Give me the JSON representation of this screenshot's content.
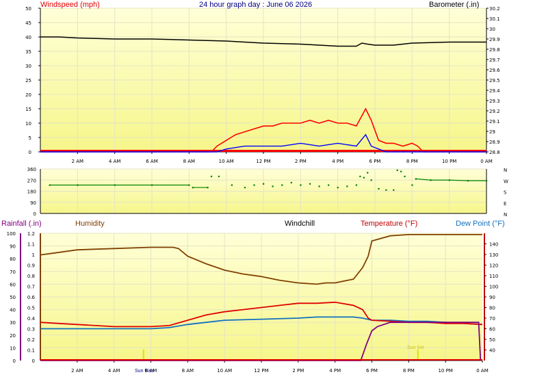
{
  "top": {
    "title": "24 hour graph day : June 06 2026",
    "left_label": "Windspeed (mph)",
    "right_label": "Barometer (.in)"
  },
  "bottom": {
    "rainfall_label": "Rainfall (.in)",
    "humidity_label": "Humidity",
    "windchill_label": "Windchill",
    "temperature_label": "Temperature (°F)",
    "dewpoint_label": "Dew Point (°F)",
    "sunrise_label": "Sun Rise",
    "sunset_label": "Sun Set"
  },
  "time_ticks": [
    "2 AM",
    "4 AM",
    "6 AM",
    "8 AM",
    "10 AM",
    "12 PM",
    "2 PM",
    "4 PM",
    "6 PM",
    "8 PM",
    "10 PM",
    "0 AM"
  ],
  "colors": {
    "plot_bg_top": "#ffffd8",
    "plot_bg_bottom": "#f6f68a",
    "grid": "#e4e4c4",
    "wind": "#ff0000",
    "gust": "#0000ff",
    "barometer": "#000000",
    "direction": "#008000",
    "humidity": "#804000",
    "temperature": "#e00000",
    "dewpoint": "#1070c0",
    "windchill": "#000000",
    "rain": "#800080",
    "sun": "#e0e000"
  },
  "chart_data": [
    {
      "type": "line",
      "name": "wind",
      "x_unit": "hours since 0 AM",
      "xlim": [
        0,
        24
      ],
      "ylim_left": [
        0,
        50
      ],
      "yticks_left": [
        0,
        5,
        10,
        15,
        20,
        25,
        30,
        35,
        40,
        45,
        50
      ],
      "ylim_right": [
        28.8,
        30.2
      ],
      "yticks_right": [
        "30.2",
        "30.1",
        "30",
        "29.9",
        "29.8",
        "29.7",
        "29.6",
        "29.5",
        "29.4",
        "29.3",
        "29.2",
        "29.1",
        "29",
        "28.9",
        "28.8"
      ],
      "series": [
        {
          "name": "Windspeed (mph)",
          "axis": "left",
          "x": [
            0,
            9.2,
            9.5,
            10,
            10.5,
            11,
            11.5,
            12,
            12.5,
            13,
            13.5,
            14,
            14.5,
            15,
            15.5,
            16,
            16.5,
            17,
            17.5,
            17.8,
            18.2,
            18.6,
            19,
            19.5,
            20,
            20.3,
            20.6,
            24
          ],
          "y": [
            0,
            0,
            2,
            4,
            6,
            7,
            8,
            9,
            9,
            10,
            10,
            10,
            11,
            10,
            11,
            10,
            10,
            9,
            15,
            11,
            4,
            3,
            3,
            2,
            3,
            2,
            0,
            0
          ]
        },
        {
          "name": "Gust",
          "axis": "left",
          "x": [
            0,
            9.5,
            10,
            11,
            12,
            13,
            14,
            15,
            16,
            17,
            17.5,
            17.8,
            18.2,
            18.6,
            24
          ],
          "y": [
            0,
            0,
            1,
            2,
            2,
            2,
            3,
            2,
            3,
            2,
            6,
            2,
            1,
            0,
            0
          ]
        },
        {
          "name": "Barometer (.in)",
          "axis": "right",
          "x": [
            0,
            1,
            2,
            4,
            6,
            8,
            10,
            12,
            14,
            16,
            17,
            17.3,
            17.6,
            18,
            19,
            20,
            22,
            24
          ],
          "y": [
            29.92,
            29.92,
            29.91,
            29.9,
            29.9,
            29.89,
            29.88,
            29.86,
            29.85,
            29.83,
            29.83,
            29.86,
            29.85,
            29.84,
            29.84,
            29.86,
            29.87,
            29.87
          ]
        }
      ]
    },
    {
      "type": "scatter",
      "name": "wind direction",
      "x_unit": "hours since 0 AM",
      "xlim": [
        0,
        24
      ],
      "ylim": [
        0,
        360
      ],
      "yticks": [
        0,
        90,
        180,
        270,
        360
      ],
      "compass": [
        "N",
        "W",
        "S",
        "E",
        "N"
      ],
      "points": [
        [
          0.5,
          230
        ],
        [
          2,
          230
        ],
        [
          4,
          230
        ],
        [
          6,
          230
        ],
        [
          8,
          230
        ],
        [
          8.2,
          210
        ],
        [
          9,
          210
        ],
        [
          9.2,
          300
        ],
        [
          9.6,
          300
        ],
        [
          10.3,
          230
        ],
        [
          11,
          210
        ],
        [
          11.5,
          230
        ],
        [
          12,
          240
        ],
        [
          12.5,
          220
        ],
        [
          13,
          230
        ],
        [
          13.5,
          250
        ],
        [
          14,
          230
        ],
        [
          14.5,
          240
        ],
        [
          15,
          220
        ],
        [
          15.5,
          230
        ],
        [
          16,
          210
        ],
        [
          16.5,
          220
        ],
        [
          17,
          230
        ],
        [
          17.2,
          300
        ],
        [
          17.4,
          290
        ],
        [
          17.6,
          330
        ],
        [
          17.8,
          270
        ],
        [
          18.2,
          200
        ],
        [
          18.6,
          190
        ],
        [
          19,
          190
        ],
        [
          19.2,
          350
        ],
        [
          19.4,
          340
        ],
        [
          19.6,
          300
        ],
        [
          20,
          230
        ],
        [
          20.2,
          280
        ],
        [
          21,
          270
        ],
        [
          22,
          270
        ],
        [
          23,
          265
        ],
        [
          24,
          265
        ]
      ]
    },
    {
      "type": "line",
      "name": "temperature humidity",
      "x_unit": "hours since 0 AM",
      "xlim": [
        0,
        24
      ],
      "rain_axis": {
        "ylim": [
          0,
          1.2
        ],
        "ticks": [
          "0",
          "0.1",
          "0.2",
          "0.3",
          "0.4",
          "0.5",
          "0.6",
          "0.7",
          "0.8",
          "0.9",
          "1",
          "1.1",
          "1.2"
        ]
      },
      "humidity_axis": {
        "ylim": [
          0,
          100
        ],
        "ticks": [
          0,
          10,
          20,
          30,
          40,
          50,
          60,
          70,
          80,
          90,
          100
        ]
      },
      "temp_axis": {
        "ylim": [
          30,
          150
        ],
        "ticks": [
          40,
          50,
          60,
          70,
          80,
          90,
          100,
          110,
          120,
          130,
          140
        ]
      },
      "series": [
        {
          "name": "Humidity",
          "axis": "humidity",
          "x": [
            0,
            0.5,
            2,
            4,
            6,
            7.2,
            7.5,
            8,
            9,
            10,
            11,
            12,
            13,
            14,
            15,
            15.5,
            16,
            17,
            17.5,
            17.8,
            18,
            19,
            20,
            22,
            24
          ],
          "y": [
            83,
            84,
            87,
            88,
            89,
            89,
            88,
            82,
            76,
            71,
            68,
            66,
            63,
            61,
            60,
            61,
            61,
            64,
            73,
            82,
            94,
            98,
            99,
            99,
            99
          ]
        },
        {
          "name": "Temperature (°F)",
          "axis": "temp",
          "x": [
            0,
            1,
            2,
            3,
            4,
            5,
            6,
            7,
            8,
            9,
            10,
            11,
            12,
            13,
            14,
            15,
            16,
            17,
            17.5,
            17.8,
            18,
            19,
            20,
            21,
            22,
            23,
            24
          ],
          "y": [
            66,
            65,
            64,
            63,
            62,
            62,
            62,
            63,
            68,
            73,
            76,
            78,
            80,
            82,
            84,
            84,
            85,
            82,
            78,
            70,
            68,
            67,
            66,
            66,
            65,
            65,
            64
          ]
        },
        {
          "name": "Dew Point (°F)",
          "axis": "temp",
          "x": [
            0,
            1,
            2,
            4,
            6,
            7,
            8,
            9,
            10,
            12,
            14,
            15,
            16,
            17,
            17.5,
            18,
            19,
            20,
            21,
            22,
            24
          ],
          "y": [
            60,
            60,
            60,
            60,
            60,
            61,
            64,
            66,
            68,
            69,
            70,
            71,
            71,
            71,
            70,
            68,
            68,
            67,
            67,
            66,
            64
          ]
        },
        {
          "name": "Windchill",
          "axis": "temp",
          "x": [
            0,
            1,
            2,
            3,
            4,
            5,
            6,
            7,
            8,
            9,
            10,
            11,
            12,
            13,
            14,
            15,
            16,
            17,
            17.5,
            17.8,
            18,
            19,
            20,
            21,
            22,
            23,
            24
          ],
          "y": [
            66,
            65,
            64,
            63,
            62,
            62,
            62,
            63,
            68,
            73,
            76,
            78,
            80,
            82,
            84,
            84,
            85,
            82,
            78,
            70,
            68,
            67,
            66,
            66,
            65,
            65,
            64
          ]
        },
        {
          "name": "Rainfall (.in)",
          "axis": "rain",
          "x": [
            0,
            17.4,
            17.7,
            18,
            18.3,
            19,
            20,
            22,
            23.8,
            23.9
          ],
          "y": [
            0,
            0,
            0.15,
            0.28,
            0.32,
            0.36,
            0.36,
            0.36,
            0.36,
            0
          ]
        }
      ],
      "markers": [
        {
          "label": "Sun Rise",
          "x": 5.6
        },
        {
          "label": "Sun Set",
          "x": 20.5
        }
      ]
    }
  ]
}
